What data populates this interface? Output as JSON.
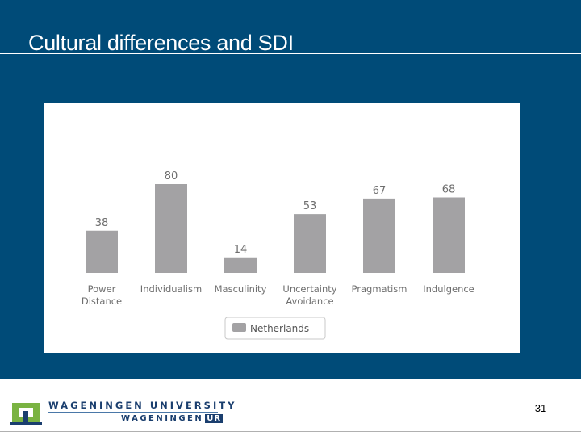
{
  "slide": {
    "title": "Cultural differences and SDI",
    "page_number": "31"
  },
  "footer": {
    "university_name": "WAGENINGEN UNIVERSITY",
    "ur_prefix": "WAGENINGEN",
    "ur_suffix": "UR"
  },
  "colors": {
    "background": "#004b78",
    "bar": "#a3a2a4",
    "label_text": "#6e6e6e",
    "logo_green": "#7ab342"
  },
  "chart_data": {
    "type": "bar",
    "categories": [
      [
        "Power",
        "Distance"
      ],
      [
        "Individualism"
      ],
      [
        "Masculinity"
      ],
      [
        "Uncertainty",
        "Avoidance"
      ],
      [
        "Pragmatism"
      ],
      [
        "Indulgence"
      ]
    ],
    "series": [
      {
        "name": "Netherlands",
        "values": [
          38,
          80,
          14,
          53,
          67,
          68
        ]
      }
    ],
    "title": "",
    "xlabel": "",
    "ylabel": "",
    "ylim": [
      0,
      100
    ],
    "grid": false,
    "legend": "bottom-center",
    "data_labels": true
  }
}
